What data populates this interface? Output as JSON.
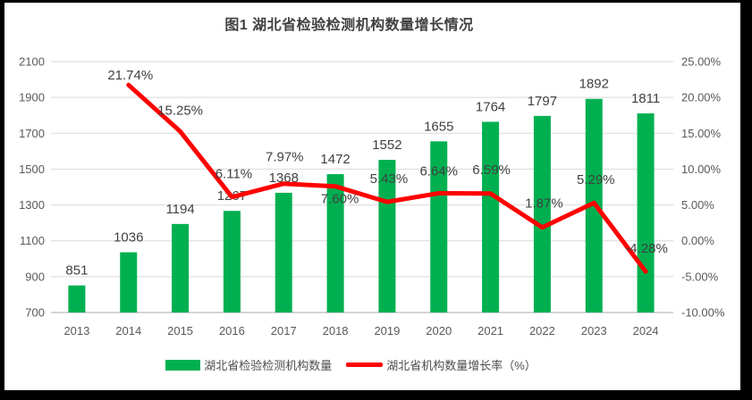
{
  "chart_data": {
    "type": "bar+line combo",
    "title": "图1 湖北省检验检测机构数量增长情况",
    "categories": [
      "2013",
      "2014",
      "2015",
      "2016",
      "2017",
      "2018",
      "2019",
      "2020",
      "2021",
      "2022",
      "2023",
      "2024"
    ],
    "series": [
      {
        "name": "湖北省检验检测机构数量",
        "type": "bar",
        "axis": "left",
        "color": "#00B050",
        "values": [
          851,
          1036,
          1194,
          1267,
          1368,
          1472,
          1552,
          1655,
          1764,
          1797,
          1892,
          1811
        ],
        "labels": [
          "851",
          "1036",
          "1194",
          "1267",
          "1368",
          "1472",
          "1552",
          "1655",
          "1764",
          "1797",
          "1892",
          "1811"
        ]
      },
      {
        "name": "湖北省机构数量增长率（%）",
        "type": "line",
        "axis": "right",
        "color": "#FF0000",
        "values": [
          null,
          21.74,
          15.25,
          6.11,
          7.97,
          7.6,
          5.43,
          6.64,
          6.59,
          1.87,
          5.29,
          -4.28
        ],
        "labels": [
          null,
          "21.74%",
          "15.25%",
          "6.11%",
          "7.97%",
          "7.60%",
          "5.43%",
          "6.64%",
          "6.59%",
          "1.87%",
          "5.29%",
          "-4.28%"
        ]
      }
    ],
    "left_axis": {
      "min": 700,
      "max": 2100,
      "step": 200,
      "ticks": [
        "700",
        "900",
        "1100",
        "1300",
        "1500",
        "1700",
        "1900",
        "2100"
      ]
    },
    "right_axis": {
      "min": -10,
      "max": 25,
      "step": 5,
      "ticks": [
        "-10.00%",
        "-5.00%",
        "0.00%",
        "5.00%",
        "10.00%",
        "15.00%",
        "20.00%",
        "25.00%"
      ]
    },
    "grid": true,
    "legend_position": "bottom",
    "label_offsets": {
      "line": [
        null,
        [
          2,
          -6
        ],
        [
          0,
          -19
        ],
        [
          2,
          -21
        ],
        [
          1,
          -25
        ],
        [
          5,
          19
        ],
        [
          2,
          -21
        ],
        [
          0,
          -20
        ],
        [
          1,
          -22
        ],
        [
          2,
          -22
        ],
        [
          2,
          -21
        ],
        [
          1,
          -21
        ]
      ]
    },
    "colors": {
      "bar": "#00B050",
      "line": "#FF0000",
      "gridline": "#D9D9D9",
      "axis_line": "#C6C6C6",
      "axis_text": "#595959",
      "data_label_text": "#404040",
      "frame_border": "#000000",
      "background": "#FFFFFF"
    }
  }
}
